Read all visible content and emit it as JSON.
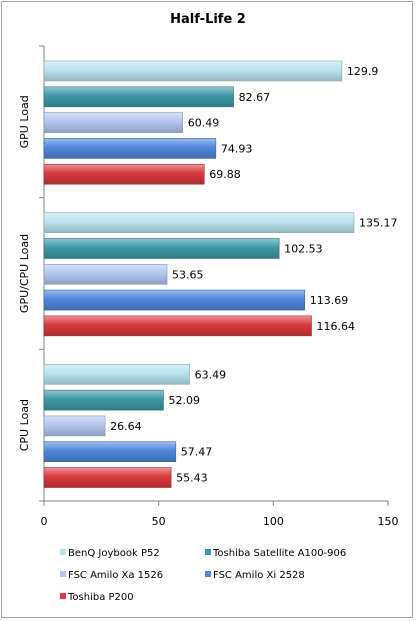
{
  "chart_data": {
    "type": "bar",
    "orientation": "horizontal",
    "title": "Half-Life 2",
    "xlim": [
      0,
      150
    ],
    "xticks": [
      0,
      50,
      100,
      150
    ],
    "grid": false,
    "legend_position": "bottom",
    "categories": [
      "GPU Load",
      "GPU/CPU Load",
      "CPU Load"
    ],
    "series": [
      {
        "name": "BenQ Joybook P52",
        "color": "#b9e3ee",
        "values": [
          129.9,
          135.17,
          63.49
        ]
      },
      {
        "name": "Toshiba Satellite A100-906",
        "color": "#3d98a7",
        "values": [
          82.67,
          102.53,
          52.09
        ]
      },
      {
        "name": "FSC Amilo Xa 1526",
        "color": "#b3c6f0",
        "values": [
          60.49,
          53.65,
          26.64
        ]
      },
      {
        "name": "FSC Amilo Xi 2528",
        "color": "#4f86dc",
        "values": [
          74.93,
          113.69,
          57.47
        ]
      },
      {
        "name": "Toshiba P200",
        "color": "#d83a3f",
        "values": [
          69.88,
          116.64,
          55.43
        ]
      }
    ],
    "value_labels": [
      [
        "129.9",
        "82.67",
        "60.49",
        "74.93",
        "69.88"
      ],
      [
        "135.17",
        "102.53",
        "53.65",
        "113.69",
        "116.64"
      ],
      [
        "63.49",
        "52.09",
        "26.64",
        "57.47",
        "55.43"
      ]
    ]
  }
}
